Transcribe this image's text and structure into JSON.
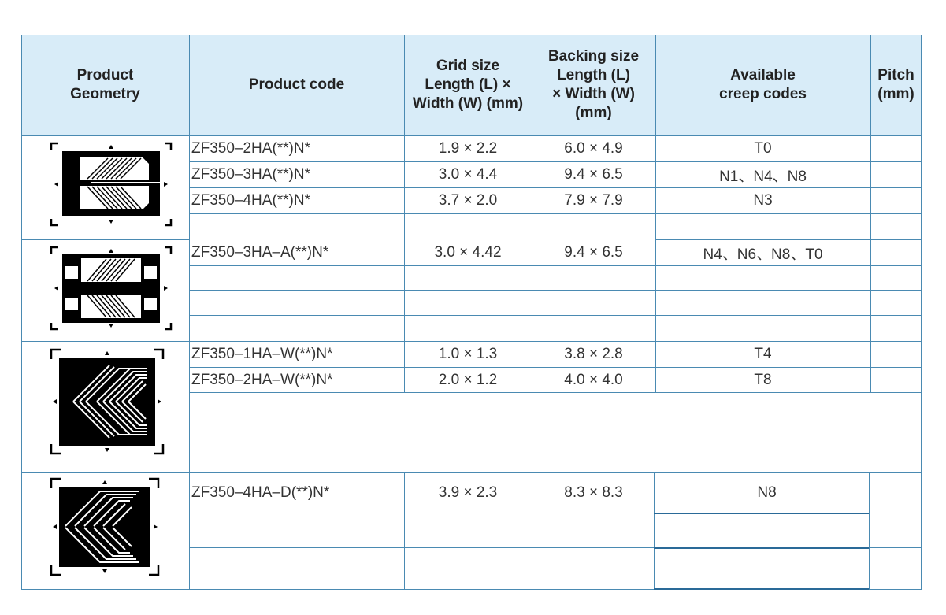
{
  "headers": {
    "geometry": "Product\nGeometry",
    "code": "Product code",
    "grid": "Grid size\nLength (L) ×\nWidth (W) (mm)",
    "backing": "Backing size\nLength (L)\n× Width (W)\n(mm)",
    "creep": "Available\ncreep codes",
    "pitch": "Pitch\n(mm)"
  },
  "rows": [
    {
      "code": "ZF350–2HA(**)N*",
      "grid": "1.9 × 2.2",
      "backing": "6.0 × 4.9",
      "creep": "T0"
    },
    {
      "code": "ZF350–3HA(**)N*",
      "grid": "3.0 × 4.4",
      "backing": "9.4 × 6.5",
      "creep": "N1、N4、N8"
    },
    {
      "code": "ZF350–4HA(**)N*",
      "grid": "3.7 × 2.0",
      "backing": "7.9 × 7.9",
      "creep": "N3"
    },
    {
      "code": "ZF350–3HA–A(**)N*",
      "grid": "3.0 × 4.42",
      "backing": "9.4 × 6.5",
      "creep": "N4、N6、N8、T0"
    },
    {
      "code": "ZF350–1HA–W(**)N*",
      "grid": "1.0 × 1.3",
      "backing": "3.8 × 2.8",
      "creep": "T4"
    },
    {
      "code": "ZF350–2HA–W(**)N*",
      "grid": "2.0 × 1.2",
      "backing": "4.0 × 4.0",
      "creep": "T8"
    },
    {
      "code": "ZF350–4HA–D(**)N*",
      "grid": "3.9 × 2.3",
      "backing": "8.3 × 8.3",
      "creep": "N8"
    }
  ],
  "images": [
    {
      "icon": "strain-gauge-double-grid-icon"
    },
    {
      "icon": "strain-gauge-double-grid-tabbed-icon"
    },
    {
      "icon": "strain-gauge-chevron-icon"
    },
    {
      "icon": "strain-gauge-chevron-dual-icon"
    }
  ]
}
